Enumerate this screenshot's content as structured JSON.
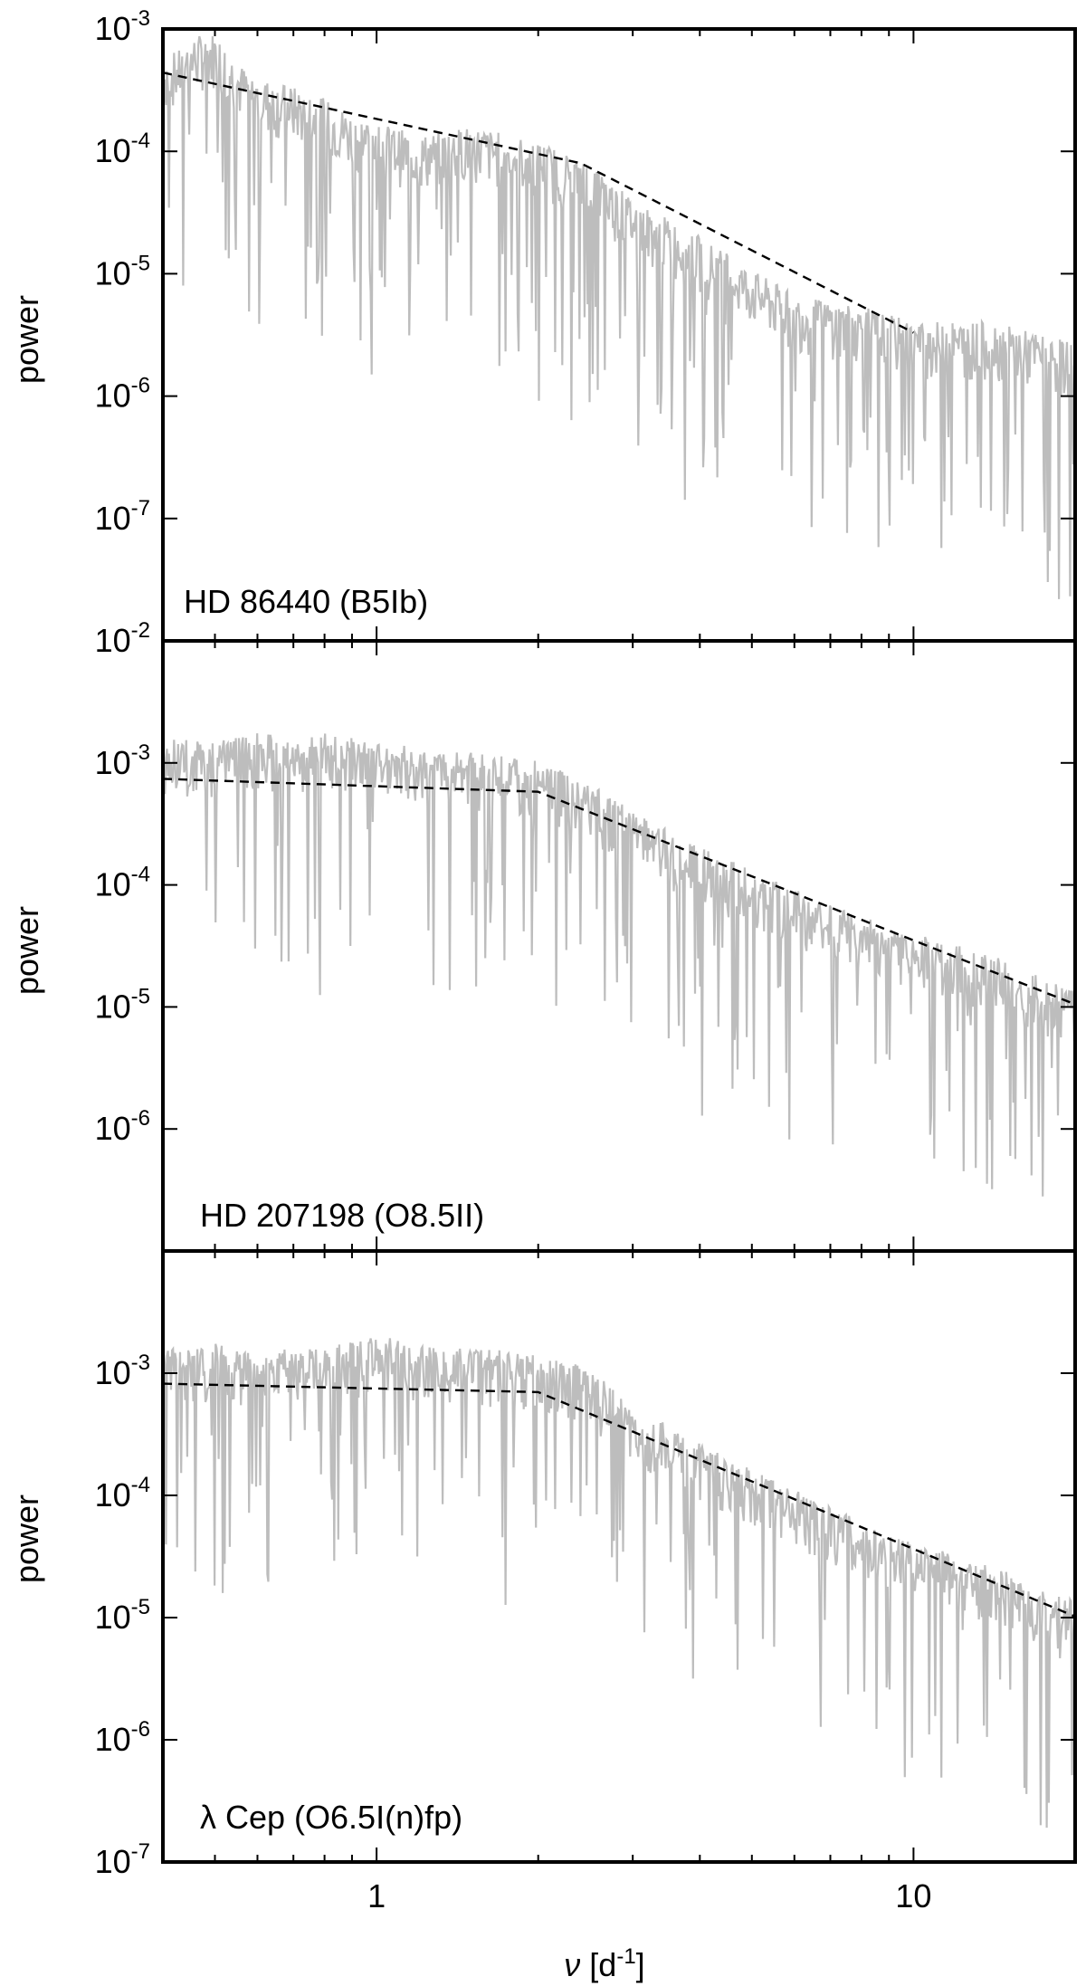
{
  "chart_data": [
    {
      "type": "line",
      "label": "HD 86440 (B5Ib)",
      "ylabel": "power",
      "xscale": "log",
      "yscale": "log",
      "xlim": [
        0.4,
        20
      ],
      "ylim": [
        1e-08,
        0.001
      ],
      "y_tick_labels": [
        {
          "value": 0.001,
          "base": "10",
          "exp": "-3"
        },
        {
          "value": 0.0001,
          "base": "10",
          "exp": "-4"
        },
        {
          "value": 1e-05,
          "base": "10",
          "exp": "-5"
        },
        {
          "value": 1e-06,
          "base": "10",
          "exp": "-6"
        },
        {
          "value": 1e-07,
          "base": "10",
          "exp": "-7"
        }
      ],
      "series": [
        {
          "name": "periodogram",
          "color": "#bdbdbd",
          "x": [
            0.4,
            0.43,
            0.46,
            0.5,
            0.55,
            0.6,
            0.7,
            0.8,
            0.9,
            1.0,
            1.2,
            1.5,
            2.0,
            2.5,
            3.0,
            4.0,
            5.0,
            6.0,
            8.0,
            10.0,
            14.0,
            20.0
          ],
          "y": [
            0.00045,
            0.0005,
            0.00065,
            0.0007,
            0.0004,
            0.0003,
            0.00025,
            0.0002,
            0.00015,
            0.00013,
            0.0001,
            0.00012,
            9e-05,
            6e-05,
            3e-05,
            1.5e-05,
            8e-06,
            5e-06,
            4e-06,
            3e-06,
            3e-06,
            2e-06
          ]
        },
        {
          "name": "fit",
          "color": "#000000",
          "dashed": true,
          "x": [
            0.4,
            2.4,
            10.0
          ],
          "y": [
            0.00044,
            8e-05,
            3.3e-06
          ]
        }
      ]
    },
    {
      "type": "line",
      "label": "HD 207198 (O8.5II)",
      "ylabel": "power",
      "xscale": "log",
      "yscale": "log",
      "xlim": [
        0.4,
        20
      ],
      "ylim": [
        1e-07,
        0.01
      ],
      "y_tick_labels": [
        {
          "value": 0.01,
          "base": "10",
          "exp": "-2"
        },
        {
          "value": 0.001,
          "base": "10",
          "exp": "-3"
        },
        {
          "value": 0.0001,
          "base": "10",
          "exp": "-4"
        },
        {
          "value": 1e-05,
          "base": "10",
          "exp": "-5"
        },
        {
          "value": 1e-06,
          "base": "10",
          "exp": "-6"
        }
      ],
      "series": [
        {
          "name": "periodogram",
          "color": "#bdbdbd",
          "x": [
            0.4,
            0.5,
            0.6,
            0.7,
            0.8,
            1.0,
            1.2,
            1.5,
            2.0,
            2.5,
            3.0,
            4.0,
            5.0,
            7.0,
            10.0,
            14.0,
            20.0
          ],
          "y": [
            0.0012,
            0.0011,
            0.0013,
            0.0012,
            0.0013,
            0.0011,
            0.001,
            0.0009,
            0.0008,
            0.0005,
            0.0003,
            0.00015,
            0.0001,
            5e-05,
            3e-05,
            2e-05,
            1e-05
          ]
        },
        {
          "name": "fit",
          "color": "#000000",
          "dashed": true,
          "x": [
            0.4,
            2.0,
            20.0
          ],
          "y": [
            0.00074,
            0.00058,
            1.05e-05
          ]
        }
      ]
    },
    {
      "type": "line",
      "label": "λ Cep (O6.5I(n)fp)",
      "ylabel": "power",
      "xlabel": "ν [d⁻¹]",
      "xscale": "log",
      "yscale": "log",
      "xlim": [
        0.4,
        20
      ],
      "ylim": [
        1e-07,
        0.01
      ],
      "y_tick_labels": [
        {
          "value": 0.001,
          "base": "10",
          "exp": "-3"
        },
        {
          "value": 0.0001,
          "base": "10",
          "exp": "-4"
        },
        {
          "value": 1e-05,
          "base": "10",
          "exp": "-5"
        },
        {
          "value": 1e-06,
          "base": "10",
          "exp": "-6"
        },
        {
          "value": 1e-07,
          "base": "10",
          "exp": "-7"
        }
      ],
      "x_tick_labels": [
        {
          "value": 1,
          "text": "1"
        },
        {
          "value": 10,
          "text": "10"
        }
      ],
      "series": [
        {
          "name": "periodogram",
          "color": "#bdbdbd",
          "x": [
            0.4,
            0.5,
            0.6,
            0.7,
            0.8,
            1.0,
            1.2,
            1.5,
            2.0,
            2.5,
            3.0,
            4.0,
            5.0,
            7.0,
            10.0,
            14.0,
            20.0
          ],
          "y": [
            0.0012,
            0.0013,
            0.0011,
            0.0012,
            0.0012,
            0.0015,
            0.0013,
            0.0012,
            0.0011,
            0.0008,
            0.0004,
            0.0002,
            0.00012,
            6e-05,
            3e-05,
            2e-05,
            1e-05
          ]
        },
        {
          "name": "fit",
          "color": "#000000",
          "dashed": true,
          "x": [
            0.4,
            2.0,
            20.0
          ],
          "y": [
            0.00082,
            0.0007,
            1.02e-05
          ]
        }
      ]
    }
  ],
  "x_axis": {
    "label_symbol": "ν",
    "label_unit_open": " [d",
    "label_exp": "-1",
    "label_unit_close": "]"
  }
}
